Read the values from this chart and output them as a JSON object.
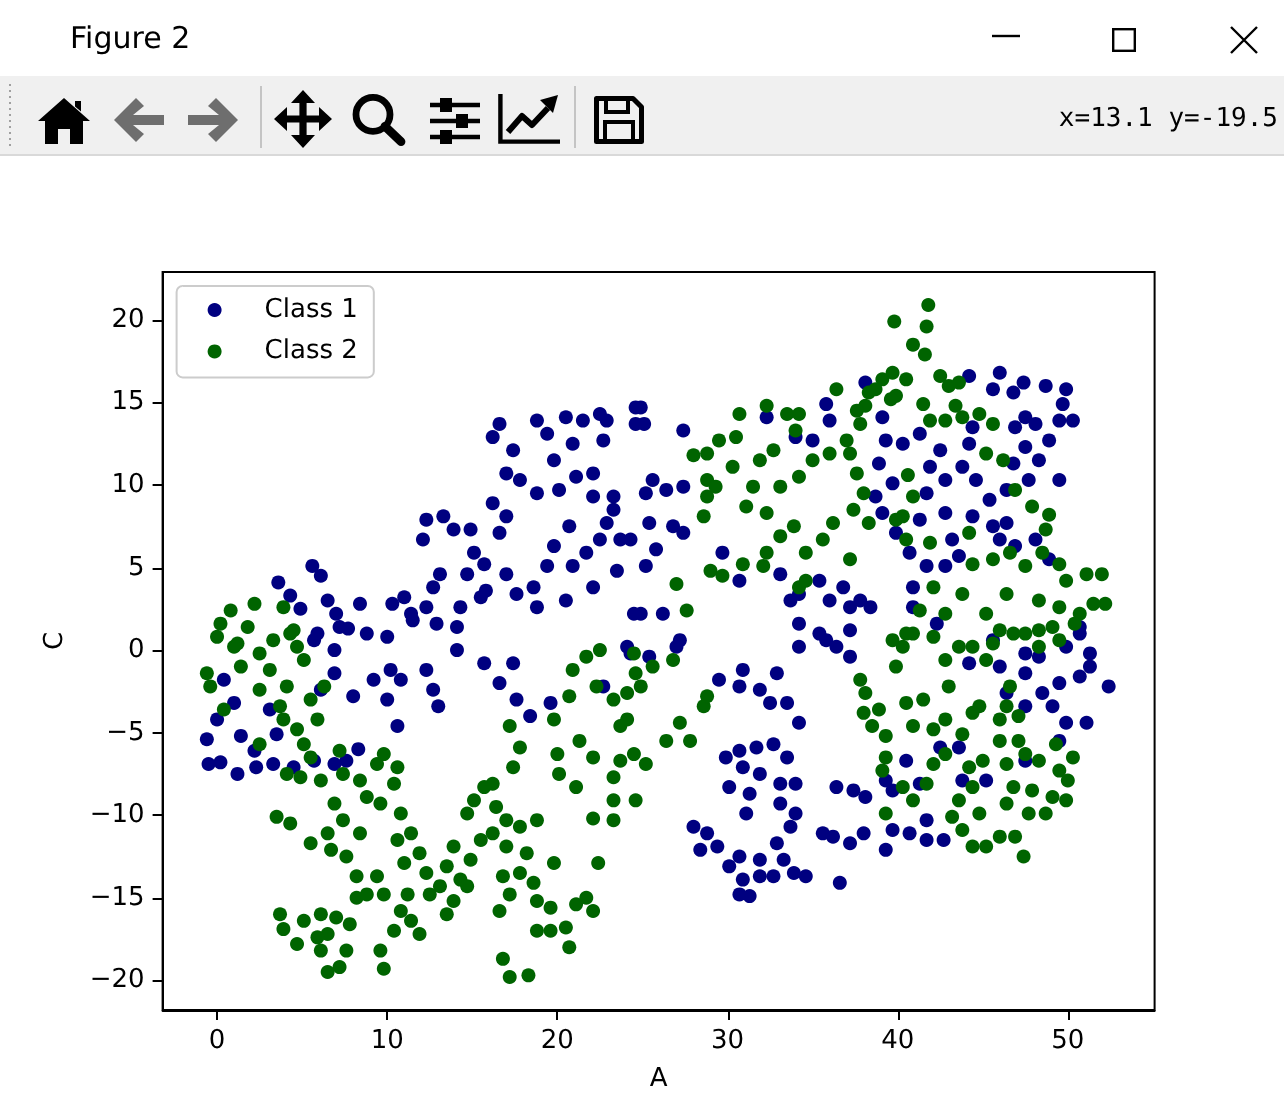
{
  "chart_data": {
    "type": "scatter",
    "title": "Figure 2",
    "xlabel": "A",
    "ylabel": "C",
    "annotations": [
      "x=13.1 y=-19.5"
    ],
    "xlim": [
      -3.2,
      55.1
    ],
    "ylim": [
      -21.8,
      22.9
    ],
    "xticks": [
      0,
      10,
      20,
      30,
      40,
      50
    ],
    "yticks": [
      -20,
      -15,
      -10,
      -5,
      0,
      5,
      10,
      15,
      20
    ],
    "legend": "top left",
    "marker": "circle",
    "series": [
      {
        "name": "Class 1",
        "color": "#000080",
        "x": [
          3.6,
          5.6,
          6.1,
          4.3,
          4.9,
          6.5,
          7.0,
          8.4,
          7.7,
          8.8,
          5.9,
          10.0,
          10.3,
          11.0,
          11.4,
          12.3,
          12.7,
          12.9,
          14.1,
          13.1,
          12.1,
          12.3,
          13.3,
          13.9,
          14.9,
          15.1,
          15.7,
          14.7,
          14.3,
          15.5,
          15.8,
          17.0,
          16.2,
          16.6,
          17.0,
          17.6,
          18.8,
          18.6,
          19.4,
          19.8,
          20.7,
          20.9,
          22.1,
          21.7,
          22.5,
          22.9,
          23.3,
          23.7,
          23.5,
          24.3,
          20.5,
          24.5,
          16.2,
          16.6,
          17.4,
          17.0,
          17.8,
          18.8,
          19.4,
          19.8,
          18.8,
          20.1,
          20.9,
          20.5,
          21.5,
          22.5,
          22.1,
          22.1,
          21.1,
          22.7,
          24.6,
          24.6,
          -0.6,
          -0.5,
          0.2,
          1.2,
          0.0,
          1.0,
          0.4,
          1.4,
          2.2,
          2.3,
          3.1,
          3.5,
          3.3,
          4.5,
          5.7,
          6.9,
          7.6,
          8.3,
          10.6,
          6.1,
          6.9,
          8.0,
          9.2,
          10.0,
          10.8,
          10.2,
          11.5,
          12.3,
          12.7,
          13.0,
          14.1,
          15.7,
          16.6,
          17.4,
          17.6,
          18.4,
          5.7,
          7.2,
          6.9,
          19.6,
          24.9,
          25.1,
          27.4,
          22.9,
          23.3,
          25.6,
          25.2,
          26.4,
          27.4,
          25.4,
          26.8,
          27.4,
          25.8,
          25.2,
          24.9,
          26.2,
          27.2,
          24.3,
          29.7,
          30.7,
          32.3,
          35.8,
          36.0,
          35.0,
          34.0,
          33.1,
          33.7,
          34.2,
          35.4,
          36.0,
          36.8,
          37.2,
          37.8,
          38.4,
          34.2,
          35.4,
          36.4,
          37.2,
          34.2,
          38.1,
          39.1,
          39.3,
          40.3,
          41.3,
          38.9,
          39.7,
          38.7,
          39.1,
          39.9,
          40.7,
          41.3,
          41.7,
          41.9,
          42.5,
          42.8,
          42.8,
          43.2,
          43.6,
          42.8,
          41.7,
          40.9,
          40.9,
          42.3,
          44.2,
          46.0,
          45.6,
          46.8,
          47.4,
          48.7,
          49.9,
          49.7,
          50.3,
          49.5,
          44.4,
          44.2,
          46.9,
          47.5,
          48.1,
          48.9,
          47.5,
          46.8,
          48.3,
          49.5,
          47.7,
          46.4,
          45.4,
          44.6,
          43.8,
          44.4,
          45.6,
          46.4,
          46.0,
          46.9,
          48.1,
          48.9,
          50.7,
          51.3,
          49.9,
          47.5,
          29.5,
          30.7,
          30.9,
          31.9,
          32.9,
          32.5,
          33.5,
          34.2,
          29.9,
          30.7,
          31.7,
          32.7,
          33.5,
          30.9,
          31.9,
          30.1,
          31.3,
          33.1,
          34.0,
          33.1,
          34.0,
          31.1,
          33.7,
          28.0,
          28.8,
          28.4,
          29.4,
          30.1,
          30.7,
          30.9,
          31.3,
          30.7,
          31.9,
          31.9,
          32.9,
          33.3,
          32.7,
          33.9,
          34.6,
          36.6,
          35.6,
          36.2,
          37.2,
          38.0,
          36.4,
          37.4,
          38.1,
          39.3,
          35.8,
          37.2,
          39.7,
          39.7,
          40.7,
          41.7,
          42.7,
          41.7,
          41.3,
          43.6,
          43.8,
          45.2,
          46.0,
          47.5,
          48.5,
          49.5,
          50.7,
          51.3,
          52.4,
          51.1,
          49.9,
          49.1,
          47.5,
          46.4,
          50.7,
          48.3,
          45.6,
          44.2,
          42.5,
          39.3,
          40.5,
          49.5,
          47.5,
          24.1,
          27.0,
          25.4,
          22.7
        ],
        "values": [
          4.1,
          5.1,
          4.5,
          3.3,
          2.5,
          3.0,
          2.2,
          2.8,
          1.3,
          1.0,
          1.0,
          0.8,
          2.8,
          3.2,
          2.2,
          2.6,
          3.8,
          1.6,
          1.4,
          4.6,
          6.7,
          7.9,
          8.1,
          7.3,
          7.3,
          5.9,
          5.2,
          4.6,
          2.6,
          3.2,
          3.6,
          8.1,
          8.9,
          7.1,
          4.6,
          3.4,
          2.6,
          3.8,
          5.1,
          6.3,
          7.5,
          5.1,
          3.8,
          5.9,
          6.7,
          7.7,
          8.5,
          6.7,
          4.8,
          6.7,
          3.0,
          2.2,
          12.9,
          13.7,
          12.1,
          10.7,
          10.3,
          13.9,
          13.1,
          11.5,
          9.5,
          9.7,
          12.5,
          14.1,
          13.9,
          14.3,
          10.7,
          9.3,
          10.5,
          12.7,
          14.7,
          13.7,
          -5.4,
          -6.9,
          -6.8,
          -7.5,
          -4.2,
          -3.2,
          -1.8,
          -5.2,
          -6.1,
          -7.1,
          -3.6,
          -5.1,
          -6.9,
          -7.1,
          -6.7,
          -6.9,
          -6.7,
          -6.0,
          -4.6,
          -2.4,
          -1.4,
          -2.8,
          -1.8,
          -3.0,
          -1.8,
          -1.2,
          1.8,
          -1.2,
          -2.4,
          -3.4,
          0.0,
          -0.8,
          -2.0,
          -0.8,
          -3.0,
          -4.0,
          0.6,
          1.4,
          0.0,
          -3.2,
          14.7,
          13.7,
          13.3,
          13.9,
          9.3,
          10.3,
          9.5,
          9.7,
          9.9,
          7.7,
          7.5,
          7.1,
          6.1,
          5.1,
          2.2,
          2.2,
          0.6,
          -0.2,
          5.9,
          4.2,
          14.1,
          14.9,
          13.9,
          12.7,
          12.9,
          4.6,
          3.0,
          3.4,
          4.2,
          3.0,
          3.8,
          2.6,
          3.0,
          2.6,
          1.6,
          1.0,
          0.2,
          1.2,
          0.2,
          16.2,
          14.1,
          12.7,
          12.5,
          13.1,
          11.3,
          10.1,
          9.3,
          8.3,
          7.1,
          5.9,
          7.9,
          9.5,
          11.1,
          12.1,
          10.3,
          8.3,
          6.7,
          5.7,
          5.1,
          5.1,
          3.8,
          2.6,
          1.6,
          16.6,
          16.8,
          15.8,
          15.6,
          16.2,
          16.0,
          15.8,
          14.9,
          13.9,
          13.9,
          13.5,
          12.5,
          13.5,
          14.1,
          13.7,
          12.7,
          12.3,
          11.3,
          11.5,
          10.3,
          10.3,
          9.7,
          9.1,
          10.3,
          11.1,
          8.1,
          7.5,
          7.7,
          6.7,
          6.3,
          6.7,
          5.5,
          1.4,
          -0.2,
          0.2,
          -0.2,
          -1.8,
          -2.2,
          -1.2,
          -2.4,
          -1.4,
          -3.2,
          -3.2,
          -4.4,
          -6.5,
          -6.1,
          -5.9,
          -5.7,
          -6.5,
          -7.1,
          -7.5,
          -8.3,
          -8.7,
          -8.1,
          -8.1,
          -9.3,
          -9.9,
          -9.9,
          -10.7,
          -10.7,
          -11.1,
          -12.1,
          -11.9,
          -13.1,
          -12.5,
          -13.9,
          -14.9,
          -14.8,
          -13.7,
          -12.7,
          -11.7,
          -12.7,
          -13.7,
          -13.5,
          -13.7,
          -14.1,
          -11.1,
          -11.3,
          -11.7,
          -11.1,
          -8.3,
          -8.5,
          -8.9,
          -12.1,
          0.6,
          -0.4,
          -8.5,
          -10.9,
          -11.1,
          -11.5,
          -11.5,
          -10.3,
          -8.1,
          -5.9,
          -7.9,
          -7.9,
          -1.0,
          -1.4,
          -2.6,
          -2.0,
          -1.6,
          -1.0,
          -2.2,
          -4.4,
          -4.4,
          -3.4,
          -3.4,
          -2.6,
          1.0,
          -0.4,
          0.6,
          -0.8,
          -5.9,
          -7.9,
          -6.7,
          -5.5,
          -6.7,
          0.2,
          0.2,
          -0.4,
          -2.2
        ]
      },
      {
        "name": "Class 2",
        "color": "#006400",
        "x": [
          0.2,
          0.8,
          2.2,
          1.8,
          0.0,
          1.2,
          3.9,
          3.3,
          4.5,
          4.7,
          2.5,
          -0.6,
          -0.4,
          0.4,
          1.0,
          1.4,
          2.5,
          3.1,
          3.7,
          4.1,
          4.3,
          5.1,
          5.5,
          5.9,
          6.3,
          3.9,
          4.7,
          5.1,
          2.5,
          5.5,
          4.1,
          4.9,
          6.1,
          7.2,
          7.4,
          8.4,
          9.4,
          9.8,
          10.6,
          10.4,
          8.8,
          9.6,
          6.9,
          3.5,
          4.3,
          5.5,
          6.5,
          7.4,
          6.7,
          7.6,
          8.4,
          8.2,
          9.4,
          9.8,
          10.8,
          10.6,
          11.4,
          11.0,
          11.9,
          12.3,
          11.2,
          10.8,
          11.4,
          11.9,
          10.4,
          9.6,
          9.8,
          12.5,
          13.1,
          13.5,
          13.9,
          14.3,
          13.5,
          13.9,
          14.9,
          14.7,
          14.7,
          15.1,
          15.7,
          16.2,
          16.4,
          17.0,
          16.2,
          15.5,
          17.0,
          17.8,
          18.2,
          18.8,
          17.4,
          17.2,
          17.8,
          16.8,
          17.2,
          16.6,
          17.8,
          18.6,
          18.8,
          19.6,
          18.8,
          19.6,
          20.5,
          20.7,
          19.8,
          21.1,
          21.7,
          22.1,
          22.4,
          16.8,
          17.2,
          18.3,
          3.7,
          3.9,
          4.7,
          5.1,
          6.1,
          6.5,
          6.1,
          6.5,
          7.2,
          7.6,
          7.0,
          7.8,
          8.2,
          8.8,
          5.9,
          19.8,
          20.0,
          20.1,
          20.9,
          20.7,
          21.7,
          22.5,
          22.3,
          21.3,
          22.1,
          21.1,
          22.1,
          23.3,
          23.3,
          23.7,
          24.1,
          24.6,
          24.5,
          24.5,
          24.6,
          23.3,
          24.9,
          25.6,
          26.8,
          27.2,
          27.8,
          26.4,
          25.2,
          23.3,
          23.7,
          28.6,
          28.8,
          24.1,
          41.8,
          39.8,
          41.7,
          40.9,
          41.6,
          39.7,
          40.5,
          39.1,
          39.9,
          38.7,
          38.3,
          38.1,
          37.6,
          36.4,
          37.8,
          39.6,
          41.5,
          42.5,
          43.0,
          43.6,
          43.4,
          41.9,
          42.8,
          43.8,
          44.8,
          45.6,
          45.2,
          46.2,
          40.6,
          40.9,
          27.0,
          27.6,
          29.0,
          29.7,
          28.6,
          28.8,
          28.0,
          28.8,
          29.5,
          30.7,
          30.5,
          32.3,
          33.5,
          34.2,
          34.0,
          28.8,
          29.3,
          30.3,
          31.9,
          32.7,
          31.5,
          31.1,
          32.3,
          33.1,
          34.2,
          35.0,
          36.0,
          37.2,
          37.6,
          38.0,
          37.4,
          38.3,
          36.2,
          35.6,
          34.6,
          33.9,
          33.1,
          32.3,
          32.1,
          30.9,
          34.2,
          34.6,
          37.2,
          37.0,
          46.9,
          47.9,
          48.7,
          48.9,
          40.3,
          39.9,
          40.5,
          41.9,
          42.1,
          44.2,
          44.4,
          45.6,
          46.6,
          47.5,
          48.5,
          49.5,
          49.9,
          51.1,
          52.0,
          52.2,
          51.5,
          50.7,
          49.5,
          48.3,
          46.4,
          45.2,
          43.8,
          42.8,
          41.3,
          40.9,
          40.3,
          42.1,
          43.6,
          45.6,
          46.8,
          48.3,
          49.5,
          50.4,
          39.7,
          39.9,
          37.8,
          38.1,
          38.0,
          38.5,
          38.9,
          39.3,
          40.5,
          41.5,
          40.9,
          42.1,
          42.8,
          42.8,
          42.1,
          41.7,
          40.9,
          39.3,
          39.1,
          40.3,
          39.3,
          43.6,
          43.2,
          43.8,
          44.4,
          45.2,
          46.0,
          46.9,
          47.4,
          44.8,
          44.4,
          44.2,
          45.0,
          43.8,
          44.4,
          43.0,
          44.8,
          46.0,
          46.4,
          46.8,
          46.4,
          47.7,
          48.7,
          47.9,
          49.1,
          49.9,
          50.0,
          49.5,
          48.3,
          47.5,
          50.3,
          47.1,
          46.0,
          46.4,
          46.6,
          47.1,
          49.3,
          40.5,
          42.8,
          44.4,
          45.2,
          46.0,
          47.5,
          48.3,
          49.1
        ],
        "values": [
          1.6,
          2.4,
          2.8,
          1.4,
          0.8,
          0.4,
          2.6,
          0.6,
          1.2,
          0.2,
          -0.2,
          -1.4,
          -2.2,
          -3.6,
          0.2,
          -1.0,
          -2.4,
          -1.2,
          -3.4,
          -2.2,
          1.0,
          -0.6,
          -3.0,
          -4.2,
          -2.2,
          -4.2,
          -4.8,
          -5.7,
          -5.7,
          -6.5,
          -7.5,
          -7.7,
          -7.9,
          -6.1,
          -7.5,
          -7.9,
          -6.9,
          -6.3,
          -7.1,
          -8.1,
          -8.9,
          -9.3,
          -9.3,
          -10.1,
          -10.5,
          -11.7,
          -11.1,
          -10.3,
          -12.1,
          -12.5,
          -11.1,
          -13.7,
          -13.7,
          -14.8,
          -9.9,
          -11.5,
          -11.1,
          -12.9,
          -12.3,
          -13.5,
          -14.8,
          -15.8,
          -16.4,
          -17.2,
          -17.0,
          -18.2,
          -19.3,
          -14.8,
          -14.3,
          -16.0,
          -15.2,
          -13.9,
          -13.1,
          -11.9,
          -12.7,
          -14.3,
          -9.9,
          -9.1,
          -8.3,
          -8.1,
          -9.5,
          -10.3,
          -11.1,
          -11.5,
          -11.9,
          -10.7,
          -12.3,
          -10.3,
          -7.1,
          -4.6,
          -5.9,
          -13.7,
          -14.8,
          -15.8,
          -13.5,
          -14.1,
          -15.2,
          -15.6,
          -17.0,
          -17.0,
          -16.8,
          -18.0,
          -12.9,
          -15.4,
          -15.0,
          -15.8,
          -12.9,
          -18.7,
          -19.8,
          -19.7,
          -16.0,
          -16.9,
          -17.8,
          -16.4,
          -16.0,
          -17.2,
          -18.2,
          -19.5,
          -19.2,
          -18.2,
          -16.2,
          -16.6,
          -15.0,
          -14.8,
          -17.4,
          -4.2,
          -6.3,
          -7.5,
          -1.2,
          -2.8,
          -0.4,
          0.0,
          -2.2,
          -5.5,
          -6.5,
          -8.3,
          -10.2,
          -9.1,
          -7.7,
          -4.6,
          -2.6,
          -1.4,
          -0.2,
          -6.3,
          -9.1,
          -3.0,
          -2.2,
          -1.0,
          -0.6,
          -4.4,
          -5.5,
          -5.5,
          -6.9,
          -10.3,
          -6.7,
          -3.4,
          -2.8,
          -4.2,
          20.9,
          19.9,
          19.6,
          18.5,
          17.9,
          16.8,
          16.4,
          16.4,
          15.4,
          15.8,
          15.6,
          14.8,
          14.5,
          15.8,
          13.7,
          15.2,
          14.9,
          16.6,
          16.0,
          16.2,
          14.8,
          13.9,
          13.9,
          14.1,
          14.3,
          13.7,
          11.9,
          11.5,
          10.6,
          9.3,
          4.0,
          2.4,
          4.8,
          4.5,
          8.1,
          9.3,
          11.8,
          11.9,
          12.7,
          14.3,
          12.9,
          14.8,
          14.3,
          14.3,
          13.3,
          10.3,
          9.9,
          11.1,
          11.5,
          12.1,
          9.9,
          8.7,
          8.3,
          9.9,
          10.5,
          11.5,
          11.9,
          11.9,
          10.7,
          9.5,
          8.5,
          7.7,
          7.7,
          6.7,
          5.9,
          7.5,
          6.9,
          5.9,
          5.1,
          5.2,
          3.8,
          4.2,
          5.5,
          12.7,
          9.7,
          8.7,
          7.3,
          8.2,
          8.1,
          7.9,
          6.7,
          6.5,
          3.8,
          7.1,
          5.2,
          5.5,
          5.9,
          5.1,
          5.9,
          5.2,
          4.2,
          4.6,
          4.6,
          2.8,
          2.8,
          2.2,
          2.6,
          3.0,
          3.4,
          2.2,
          3.4,
          2.2,
          2.4,
          1.0,
          0.2,
          0.8,
          0.2,
          0.4,
          1.0,
          1.2,
          0.6,
          1.6,
          0.6,
          -1.0,
          -1.8,
          -2.6,
          -3.8,
          -4.6,
          -3.6,
          -5.2,
          -3.2,
          -3.0,
          -4.6,
          -4.8,
          -4.2,
          -6.3,
          -6.9,
          -8.1,
          -9.1,
          -6.5,
          -7.3,
          -8.3,
          -9.9,
          -9.1,
          -10.1,
          -10.9,
          -11.9,
          -11.9,
          -11.3,
          -11.3,
          -12.5,
          -9.9,
          -8.3,
          -7.1,
          -6.7,
          -5.1,
          -3.8,
          -2.2,
          -3.4,
          -5.5,
          -6.9,
          -8.3,
          -9.3,
          -9.9,
          -9.9,
          -8.5,
          -8.9,
          -9.1,
          -7.9,
          -7.3,
          -6.7,
          -6.3,
          -6.5,
          -5.5,
          -4.2,
          -3.4,
          -2.2,
          -4.0,
          -5.7,
          1.0,
          -0.6,
          0.2,
          -0.6,
          1.2,
          1.0,
          0.2,
          1.4
        ]
      }
    ]
  }
}
